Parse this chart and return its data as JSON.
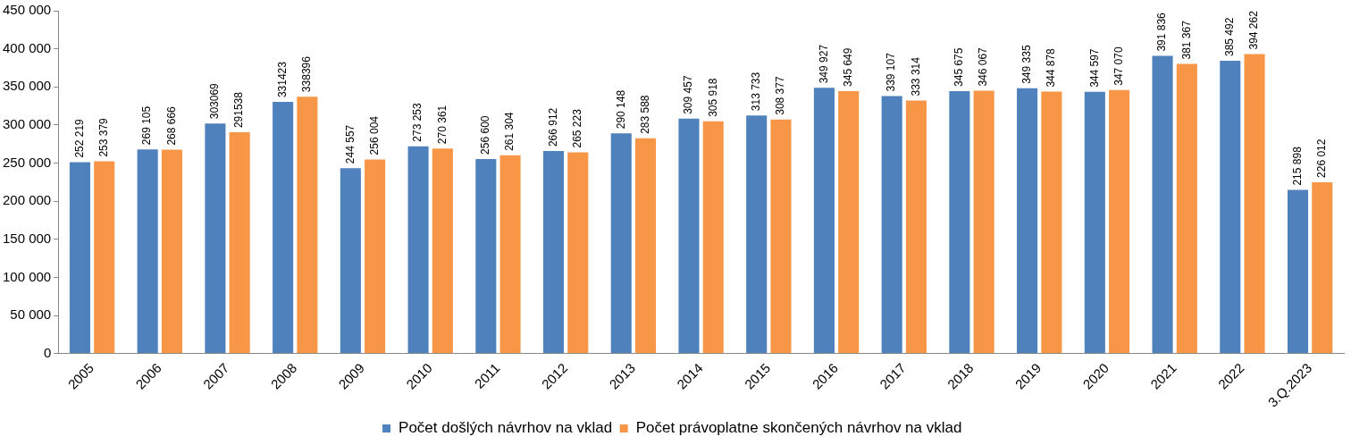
{
  "chart_data": {
    "type": "bar",
    "categories": [
      "2005",
      "2006",
      "2007",
      "2008",
      "2009",
      "2010",
      "2011",
      "2012",
      "2013",
      "2014",
      "2015",
      "2016",
      "2017",
      "2018",
      "2019",
      "2020",
      "2021",
      "2022",
      "3.Q.2023"
    ],
    "series": [
      {
        "name": "Počet došlých návrhov na vklad",
        "color": "#4f81bd",
        "values": [
          252219,
          269105,
          303069,
          331423,
          244557,
          273253,
          256600,
          266912,
          290148,
          309457,
          313733,
          349927,
          339107,
          345675,
          349335,
          344597,
          391836,
          385492,
          215898
        ],
        "value_labels": [
          "252 219",
          "269 105",
          "303069",
          "331423",
          "244 557",
          "273 253",
          "256 600",
          "266 912",
          "290 148",
          "309 457",
          "313 733",
          "349 927",
          "339 107",
          "345 675",
          "349 335",
          "344 597",
          "391 836",
          "385 492",
          "215 898"
        ]
      },
      {
        "name": "Počet právoplatne skončených návrhov na vklad",
        "color": "#f79646",
        "values": [
          253379,
          268666,
          291538,
          338396,
          256004,
          270361,
          261304,
          265223,
          283588,
          305918,
          308377,
          345649,
          333314,
          346067,
          344878,
          347070,
          381367,
          394262,
          226012
        ],
        "value_labels": [
          "253 379",
          "268 666",
          "291538",
          "338396",
          "256 004",
          "270 361",
          "261 304",
          "265 223",
          "283 588",
          "305 918",
          "308 377",
          "345 649",
          "333 314",
          "346 067",
          "344 878",
          "347 070",
          "381 367",
          "394 262",
          "226 012"
        ]
      }
    ],
    "ylim": [
      0,
      450000
    ],
    "yticks": [
      {
        "value": 0,
        "label": "0"
      },
      {
        "value": 50000,
        "label": "50 000"
      },
      {
        "value": 100000,
        "label": "100 000"
      },
      {
        "value": 150000,
        "label": "150 000"
      },
      {
        "value": 200000,
        "label": "200 000"
      },
      {
        "value": 250000,
        "label": "250 000"
      },
      {
        "value": 300000,
        "label": "300 000"
      },
      {
        "value": 350000,
        "label": "350 000"
      },
      {
        "value": 400000,
        "label": "400 000"
      },
      {
        "value": 450000,
        "label": "450 000"
      }
    ],
    "grid": false,
    "legend": "bottom"
  }
}
